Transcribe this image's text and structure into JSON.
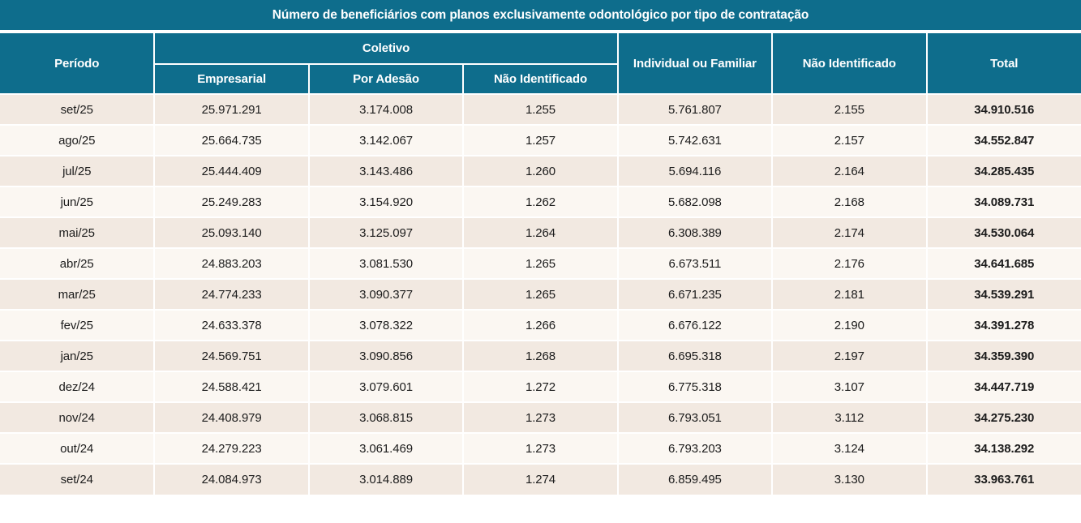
{
  "colors": {
    "header_teal": "#0e6d8c",
    "row_odd": "#f2e9e1",
    "row_even": "#fbf7f2",
    "grid_line": "#ffffff",
    "body_text": "#1c1c1c",
    "header_text": "#ffffff"
  },
  "chart_data": {
    "type": "table",
    "title": "Número de beneficiários com planos exclusivamente odontológico por tipo de contratação",
    "header": {
      "periodo": "Período",
      "coletivo_group": "Coletivo",
      "coletivo_sub": [
        "Empresarial",
        "Por Adesão",
        "Não Identificado"
      ],
      "individual_ou_familiar": "Individual ou Familiar",
      "nao_identificado": "Não Identificado",
      "total": "Total"
    },
    "columns": [
      "Período",
      "Coletivo - Empresarial",
      "Coletivo - Por Adesão",
      "Coletivo - Não Identificado",
      "Individual ou Familiar",
      "Não Identificado",
      "Total"
    ],
    "rows": [
      [
        "set/25",
        "25.971.291",
        "3.174.008",
        "1.255",
        "5.761.807",
        "2.155",
        "34.910.516"
      ],
      [
        "ago/25",
        "25.664.735",
        "3.142.067",
        "1.257",
        "5.742.631",
        "2.157",
        "34.552.847"
      ],
      [
        "jul/25",
        "25.444.409",
        "3.143.486",
        "1.260",
        "5.694.116",
        "2.164",
        "34.285.435"
      ],
      [
        "jun/25",
        "25.249.283",
        "3.154.920",
        "1.262",
        "5.682.098",
        "2.168",
        "34.089.731"
      ],
      [
        "mai/25",
        "25.093.140",
        "3.125.097",
        "1.264",
        "6.308.389",
        "2.174",
        "34.530.064"
      ],
      [
        "abr/25",
        "24.883.203",
        "3.081.530",
        "1.265",
        "6.673.511",
        "2.176",
        "34.641.685"
      ],
      [
        "mar/25",
        "24.774.233",
        "3.090.377",
        "1.265",
        "6.671.235",
        "2.181",
        "34.539.291"
      ],
      [
        "fev/25",
        "24.633.378",
        "3.078.322",
        "1.266",
        "6.676.122",
        "2.190",
        "34.391.278"
      ],
      [
        "jan/25",
        "24.569.751",
        "3.090.856",
        "1.268",
        "6.695.318",
        "2.197",
        "34.359.390"
      ],
      [
        "dez/24",
        "24.588.421",
        "3.079.601",
        "1.272",
        "6.775.318",
        "3.107",
        "34.447.719"
      ],
      [
        "nov/24",
        "24.408.979",
        "3.068.815",
        "1.273",
        "6.793.051",
        "3.112",
        "34.275.230"
      ],
      [
        "out/24",
        "24.279.223",
        "3.061.469",
        "1.273",
        "6.793.203",
        "3.124",
        "34.138.292"
      ],
      [
        "set/24",
        "24.084.973",
        "3.014.889",
        "1.274",
        "6.859.495",
        "3.130",
        "33.963.761"
      ]
    ]
  }
}
